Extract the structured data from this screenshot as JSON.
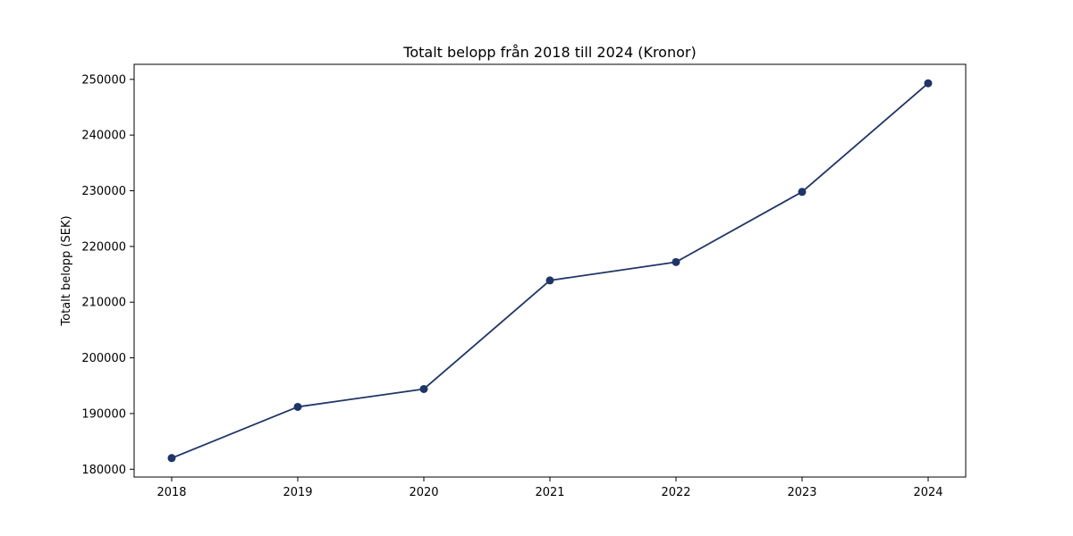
{
  "chart_data": {
    "type": "line",
    "title": "Totalt belopp från 2018 till 2024 (Kronor)",
    "xlabel": "",
    "ylabel": "Totalt belopp (SEK)",
    "x": [
      "2018",
      "2019",
      "2020",
      "2021",
      "2022",
      "2023",
      "2024"
    ],
    "series": [
      {
        "values": [
          182000,
          191200,
          194400,
          213900,
          217200,
          229800,
          249300
        ]
      }
    ],
    "yticks": [
      180000,
      190000,
      200000,
      210000,
      220000,
      230000,
      240000,
      250000
    ],
    "ytick_labels": [
      "180000",
      "190000",
      "200000",
      "210000",
      "220000",
      "230000",
      "240000",
      "250000"
    ],
    "ylim": [
      178600,
      252700
    ],
    "grid": false,
    "line_color": "#1f3566",
    "marker_color": "#1f3566",
    "marker": "circle"
  }
}
